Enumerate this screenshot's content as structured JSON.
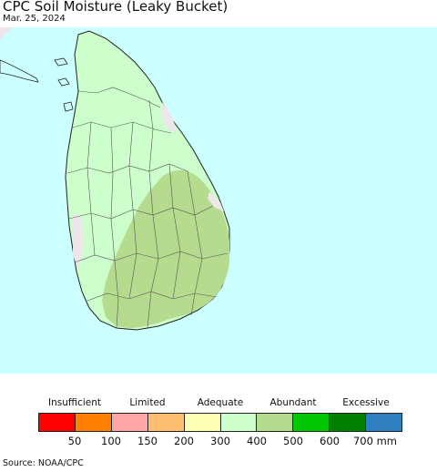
{
  "title": "CPC Soil Moisture (Leaky Bucket)",
  "date": "Mar. 25, 2024",
  "map": {
    "ocean_color": "#ccffff",
    "land_color": "#ccffcc",
    "region_abundant_color": "#b5db8e",
    "region_dry_color": "#ede6ea",
    "border_color": "#555555",
    "coast_color": "#222222"
  },
  "legend": {
    "categories": [
      {
        "label": "Insufficient",
        "under_swatch": 1
      },
      {
        "label": "Limited",
        "under_swatch": 3
      },
      {
        "label": "Adequate",
        "under_swatch": 5
      },
      {
        "label": "Abundant",
        "under_swatch": 7
      },
      {
        "label": "Excessive",
        "under_swatch": 9
      }
    ],
    "colors": [
      "#ff0000",
      "#ff8000",
      "#ffa6a6",
      "#ffbf73",
      "#ffffb3",
      "#ccffcc",
      "#b5db8e",
      "#00c800",
      "#008000",
      "#2d7fc0"
    ],
    "ticks": [
      "50",
      "100",
      "150",
      "200",
      "300",
      "400",
      "500",
      "600",
      "700 mm"
    ]
  },
  "source": "Source: NOAA/CPC"
}
